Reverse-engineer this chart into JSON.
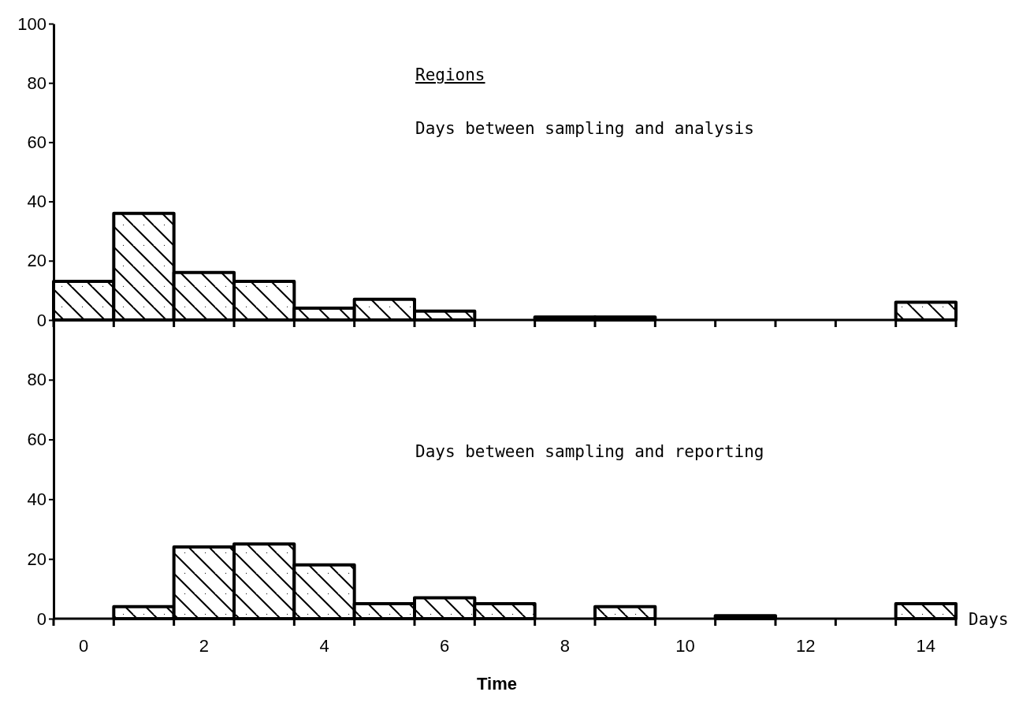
{
  "chart_data": [
    {
      "type": "histogram",
      "title": "Days between sampling and analysis",
      "annotations": [
        "Regions"
      ],
      "bins": [
        -0.5,
        0.5,
        1.5,
        2.5,
        3.5,
        4.5,
        5.5,
        6.5,
        7.5,
        8.5,
        9.5,
        10.5,
        11.5,
        12.5,
        13.5,
        14.5
      ],
      "values": [
        13,
        36,
        16,
        13,
        4,
        7,
        3,
        0,
        1,
        1,
        0,
        0,
        0,
        0,
        6
      ],
      "color": "#000000",
      "xlim": [
        -0.5,
        14.5
      ],
      "xticks": [
        {
          "value": -0.5,
          "label": null
        },
        {
          "value": 0.5,
          "label": null
        },
        {
          "value": 1.5,
          "label": null
        },
        {
          "value": 2.5,
          "label": null
        },
        {
          "value": 3.5,
          "label": null
        },
        {
          "value": 4.5,
          "label": null
        },
        {
          "value": 5.5,
          "label": null
        },
        {
          "value": 6.5,
          "label": null
        },
        {
          "value": 7.5,
          "label": null
        },
        {
          "value": 8.5,
          "label": null
        },
        {
          "value": 9.5,
          "label": null
        },
        {
          "value": 10.5,
          "label": null
        },
        {
          "value": 11.5,
          "label": null
        },
        {
          "value": 12.5,
          "label": null
        },
        {
          "value": 13.5,
          "label": null
        },
        {
          "value": 14.5,
          "label": null
        }
      ],
      "ylim": [
        0,
        100
      ],
      "yticks": [
        0,
        20,
        40,
        60,
        80,
        100
      ],
      "tick_labels": "y"
    },
    {
      "type": "histogram",
      "title": "Days between sampling and reporting",
      "xlabel": "Time",
      "annotations": [
        "Days"
      ],
      "bins": [
        -0.5,
        0.5,
        1.5,
        2.5,
        3.5,
        4.5,
        5.5,
        6.5,
        7.5,
        8.5,
        9.5,
        10.5,
        11.5,
        12.5,
        13.5,
        14.5
      ],
      "values": [
        0,
        4,
        24,
        25,
        18,
        5,
        7,
        5,
        0,
        4,
        0,
        1,
        0,
        0,
        5
      ],
      "color": "#000000",
      "xlim": [
        -0.5,
        14.5
      ],
      "xticks": [
        {
          "value": -0.5,
          "label": null
        },
        {
          "value": 0,
          "label": "0"
        },
        {
          "value": 0.5,
          "label": null
        },
        {
          "value": 1.5,
          "label": null
        },
        {
          "value": 2,
          "label": "2"
        },
        {
          "value": 2.5,
          "label": null
        },
        {
          "value": 3.5,
          "label": null
        },
        {
          "value": 4,
          "label": "4"
        },
        {
          "value": 4.5,
          "label": null
        },
        {
          "value": 5.5,
          "label": null
        },
        {
          "value": 6,
          "label": "6"
        },
        {
          "value": 6.5,
          "label": null
        },
        {
          "value": 7.5,
          "label": null
        },
        {
          "value": 8,
          "label": "8"
        },
        {
          "value": 8.5,
          "label": null
        },
        {
          "value": 9.5,
          "label": null
        },
        {
          "value": 10,
          "label": "10"
        },
        {
          "value": 10.5,
          "label": null
        },
        {
          "value": 11.5,
          "label": null
        },
        {
          "value": 12,
          "label": "12"
        },
        {
          "value": 12.5,
          "label": null
        },
        {
          "value": 13.5,
          "label": null
        },
        {
          "value": 14,
          "label": "14"
        },
        {
          "value": 14.5,
          "label": null
        }
      ],
      "ylim": [
        0,
        100
      ],
      "yticks": [
        0,
        20,
        40,
        60,
        80
      ]
    }
  ]
}
